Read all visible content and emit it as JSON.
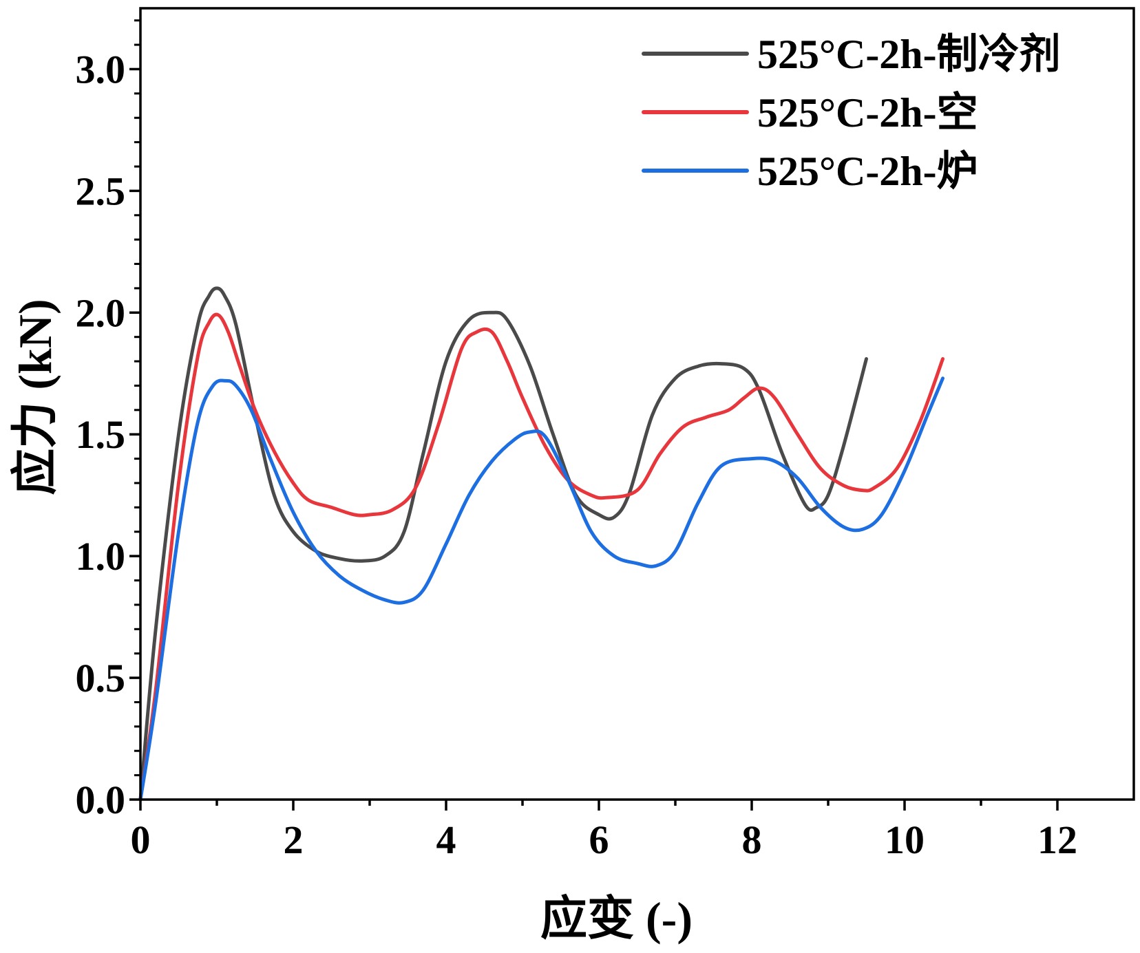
{
  "chart_data": {
    "type": "line",
    "title": "",
    "xlabel": "应变 (-)",
    "ylabel": "应力 (kN)",
    "xlim": [
      0,
      13
    ],
    "ylim": [
      0,
      3.25
    ],
    "x_ticks": [
      0,
      2,
      4,
      6,
      8,
      10,
      12
    ],
    "x_tick_labels": [
      "0",
      "2",
      "4",
      "6",
      "8",
      "10",
      "12"
    ],
    "y_ticks": [
      0.0,
      0.5,
      1.0,
      1.5,
      2.0,
      2.5,
      3.0
    ],
    "y_tick_labels": [
      "0.0",
      "0.5",
      "1.0",
      "1.5",
      "2.0",
      "2.5",
      "3.0"
    ],
    "grid": false,
    "legend_position": "top-right",
    "series": [
      {
        "name": "525°C-2h-制冷剂",
        "color": "#4a4a4a",
        "x": [
          0,
          0.2,
          0.5,
          0.75,
          0.9,
          1.0,
          1.1,
          1.25,
          1.5,
          1.75,
          2.0,
          2.3,
          2.6,
          2.9,
          3.2,
          3.45,
          3.7,
          4.0,
          4.3,
          4.6,
          4.8,
          5.1,
          5.4,
          5.7,
          6.0,
          6.2,
          6.4,
          6.7,
          7.0,
          7.3,
          7.6,
          7.9,
          8.1,
          8.4,
          8.7,
          8.85,
          9.0,
          9.2,
          9.5
        ],
        "y": [
          0.0,
          0.7,
          1.5,
          1.95,
          2.07,
          2.1,
          2.07,
          1.95,
          1.58,
          1.25,
          1.1,
          1.02,
          0.99,
          0.98,
          1.0,
          1.1,
          1.42,
          1.8,
          1.97,
          2.0,
          1.97,
          1.78,
          1.5,
          1.25,
          1.17,
          1.16,
          1.26,
          1.58,
          1.73,
          1.78,
          1.79,
          1.77,
          1.68,
          1.42,
          1.21,
          1.2,
          1.25,
          1.45,
          1.81
        ]
      },
      {
        "name": "525°C-2h-空",
        "color": "#e8373c",
        "x": [
          0,
          0.2,
          0.5,
          0.75,
          0.9,
          1.02,
          1.15,
          1.3,
          1.5,
          1.75,
          2.0,
          2.2,
          2.5,
          2.8,
          3.0,
          3.3,
          3.6,
          3.9,
          4.2,
          4.4,
          4.6,
          4.8,
          5.0,
          5.3,
          5.6,
          5.9,
          6.1,
          6.5,
          6.8,
          7.1,
          7.4,
          7.7,
          7.9,
          8.1,
          8.3,
          8.6,
          8.9,
          9.2,
          9.45,
          9.6,
          9.9,
          10.2,
          10.5
        ],
        "y": [
          0.0,
          0.45,
          1.3,
          1.82,
          1.96,
          1.99,
          1.92,
          1.78,
          1.6,
          1.43,
          1.3,
          1.23,
          1.2,
          1.17,
          1.17,
          1.19,
          1.28,
          1.54,
          1.85,
          1.92,
          1.92,
          1.8,
          1.65,
          1.45,
          1.31,
          1.25,
          1.24,
          1.27,
          1.42,
          1.53,
          1.57,
          1.6,
          1.65,
          1.69,
          1.65,
          1.5,
          1.36,
          1.29,
          1.27,
          1.28,
          1.36,
          1.55,
          1.81
        ]
      },
      {
        "name": "525°C-2h-炉",
        "color": "#1d6ee0",
        "x": [
          0,
          0.2,
          0.5,
          0.75,
          0.95,
          1.12,
          1.25,
          1.45,
          1.7,
          2.0,
          2.3,
          2.6,
          2.9,
          3.2,
          3.45,
          3.7,
          4.0,
          4.3,
          4.6,
          4.9,
          5.1,
          5.3,
          5.6,
          5.9,
          6.2,
          6.5,
          6.75,
          7.0,
          7.3,
          7.6,
          8.0,
          8.3,
          8.6,
          8.9,
          9.2,
          9.45,
          9.7,
          10.0,
          10.3,
          10.5
        ],
        "y": [
          0.0,
          0.4,
          1.1,
          1.55,
          1.7,
          1.72,
          1.7,
          1.6,
          1.4,
          1.18,
          1.02,
          0.92,
          0.86,
          0.82,
          0.81,
          0.86,
          1.05,
          1.25,
          1.39,
          1.48,
          1.51,
          1.49,
          1.31,
          1.1,
          1.0,
          0.97,
          0.96,
          1.02,
          1.22,
          1.37,
          1.4,
          1.39,
          1.32,
          1.2,
          1.12,
          1.11,
          1.17,
          1.35,
          1.58,
          1.73
        ]
      }
    ]
  }
}
